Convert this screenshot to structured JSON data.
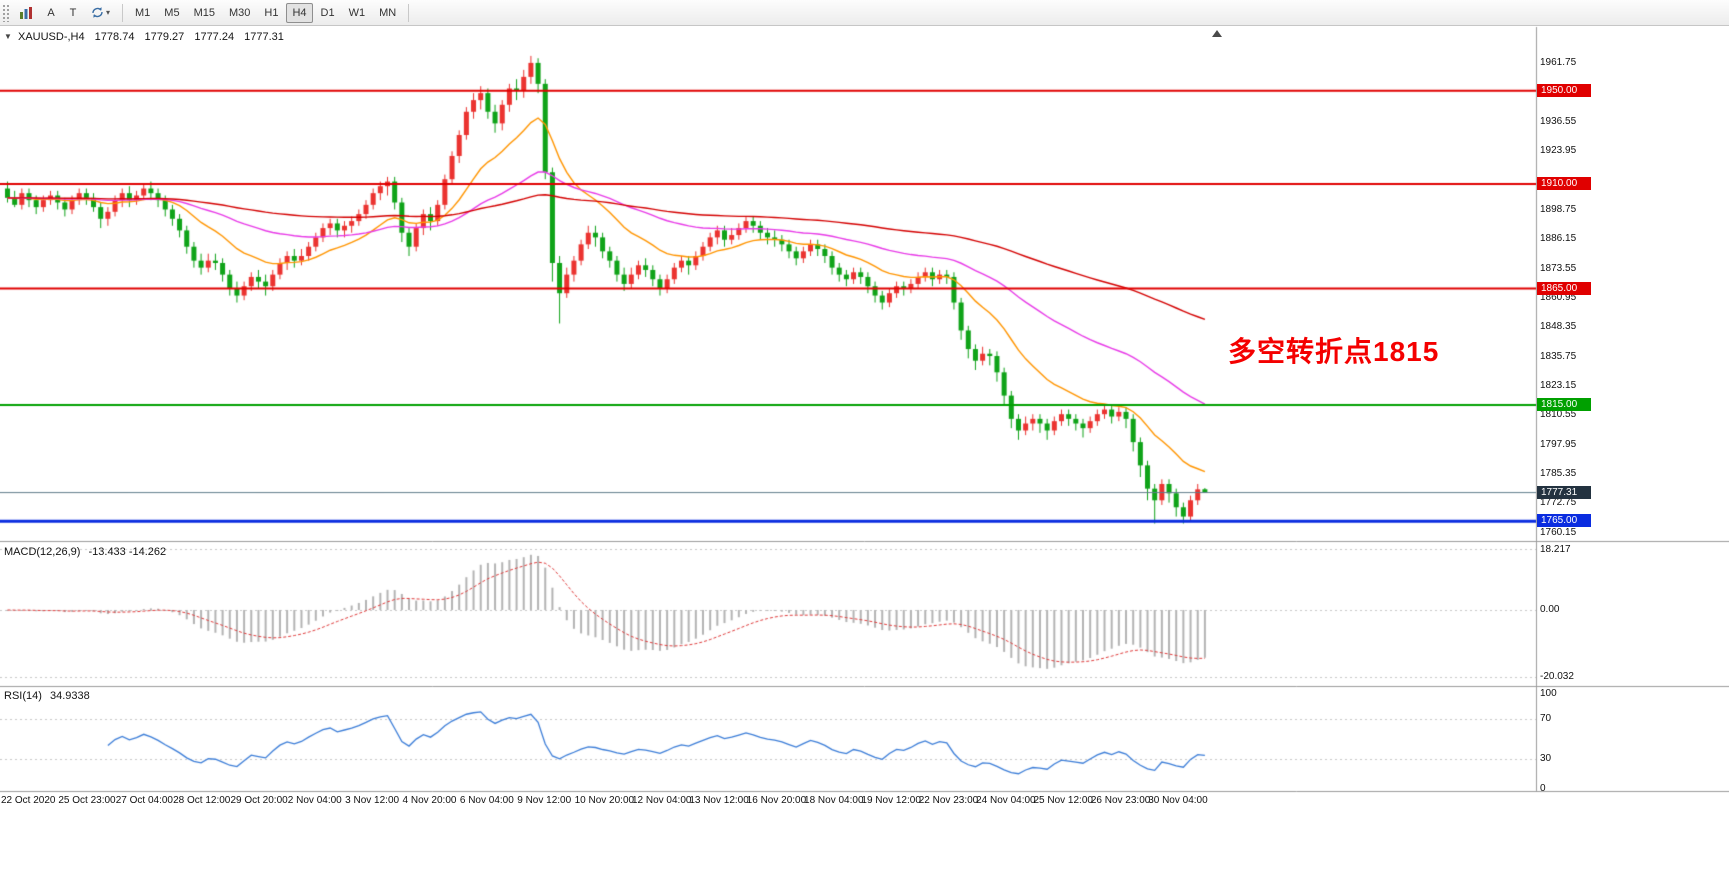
{
  "toolbar": {
    "cursor_label": "A",
    "text_label": "T",
    "timeframes": [
      "M1",
      "M5",
      "M15",
      "M30",
      "H1",
      "H4",
      "D1",
      "W1",
      "MN"
    ],
    "active_timeframe": "H4"
  },
  "header": {
    "symbol_period": "XAUUSD-,H4",
    "open": "1778.74",
    "high": "1779.27",
    "low": "1777.24",
    "close": "1777.31"
  },
  "indicators": {
    "macd_label": "MACD(12,26,9)",
    "macd_values": "-13.433 -14.262",
    "rsi_label": "RSI(14)",
    "rsi_value": "34.9338"
  },
  "chart_data": {
    "type": "candlestick",
    "symbol": "XAUUSD-",
    "timeframe": "H4",
    "up_color": "#eb3330",
    "down_color": "#0fa318",
    "y_axis": {
      "min": 1756.5,
      "max": 1977,
      "tick_values": [
        1961.75,
        1936.55,
        1923.95,
        1898.75,
        1886.15,
        1873.55,
        1860.95,
        1848.35,
        1835.75,
        1823.15,
        1810.55,
        1797.95,
        1785.35,
        1772.75,
        1760.15
      ]
    },
    "x_axis_labels": [
      "22 Oct 2020",
      "25 Oct 23:00",
      "27 Oct 04:00",
      "28 Oct 12:00",
      "29 Oct 20:00",
      "2 Nov 04:00",
      "3 Nov 12:00",
      "4 Nov 20:00",
      "6 Nov 04:00",
      "9 Nov 12:00",
      "10 Nov 20:00",
      "12 Nov 04:00",
      "13 Nov 12:00",
      "16 Nov 20:00",
      "18 Nov 04:00",
      "19 Nov 12:00",
      "22 Nov 23:00",
      "24 Nov 04:00",
      "25 Nov 12:00",
      "26 Nov 23:00",
      "30 Nov 04:00"
    ],
    "horizontal_levels": [
      {
        "price": 1950.0,
        "label": "1950.00",
        "color": "#e00000",
        "width": 2
      },
      {
        "price": 1910.0,
        "label": "1910.00",
        "color": "#e00000",
        "width": 2
      },
      {
        "price": 1865.0,
        "label": "1865.00",
        "color": "#e00000",
        "width": 2
      },
      {
        "price": 1815.0,
        "label": "1815.00",
        "color": "#00a000",
        "width": 2
      },
      {
        "price": 1765.0,
        "label": "1765.00",
        "color": "#0a2ce0",
        "width": 3
      }
    ],
    "current_price": {
      "value": 1777.31,
      "label": "1777.31",
      "line_color": "#607d8b",
      "badge_color": "#233240"
    },
    "moving_averages": [
      {
        "name": "ma-fast",
        "period": 16,
        "color": "#ff9500"
      },
      {
        "name": "ma-mid",
        "period": 48,
        "color": "#e83ae8"
      },
      {
        "name": "ma-slow",
        "period": 130,
        "color": "#d40000"
      }
    ],
    "macd": {
      "fast": 12,
      "slow": 26,
      "signal": 9,
      "axis_labels": [
        "18.217",
        "0.00",
        "-20.032"
      ],
      "axis_values": [
        18.217,
        0,
        -20.032
      ],
      "range": [
        -22.7,
        20
      ],
      "hist_color": "#b4b4b4",
      "signal_color": "#e03a3a"
    },
    "rsi": {
      "period": 14,
      "axis_labels": [
        "100",
        "70",
        "30",
        "0"
      ],
      "axis_values": [
        100,
        70,
        30,
        0
      ],
      "grid_levels": [
        70,
        30
      ],
      "range": [
        0,
        100
      ],
      "color": "#3b7dd8"
    },
    "annotation": {
      "text": "多空转折点1815",
      "color": "#f40000"
    },
    "candles": [
      [
        1908,
        1911,
        1902,
        1904
      ],
      [
        1904,
        1907,
        1900,
        1901
      ],
      [
        1901,
        1908,
        1899,
        1906
      ],
      [
        1906,
        1908,
        1900,
        1903
      ],
      [
        1903,
        1905,
        1897,
        1900
      ],
      [
        1900,
        1905,
        1898,
        1903
      ],
      [
        1903,
        1907,
        1901,
        1905
      ],
      [
        1905,
        1907,
        1899,
        1902
      ],
      [
        1902,
        1904,
        1896,
        1899
      ],
      [
        1899,
        1905,
        1897,
        1903
      ],
      [
        1903,
        1908,
        1901,
        1906
      ],
      [
        1906,
        1908,
        1901,
        1904
      ],
      [
        1904,
        1906,
        1898,
        1900
      ],
      [
        1900,
        1902,
        1891,
        1895
      ],
      [
        1895,
        1900,
        1892,
        1898
      ],
      [
        1898,
        1905,
        1896,
        1903
      ],
      [
        1903,
        1908,
        1900,
        1906
      ],
      [
        1906,
        1909,
        1900,
        1903
      ],
      [
        1903,
        1907,
        1901,
        1905
      ],
      [
        1905,
        1910,
        1903,
        1908
      ],
      [
        1908,
        1911,
        1903,
        1906
      ],
      [
        1906,
        1908,
        1900,
        1903
      ],
      [
        1903,
        1905,
        1896,
        1899
      ],
      [
        1899,
        1901,
        1892,
        1895
      ],
      [
        1895,
        1897,
        1887,
        1890
      ],
      [
        1890,
        1892,
        1880,
        1883
      ],
      [
        1883,
        1885,
        1874,
        1877
      ],
      [
        1877,
        1880,
        1871,
        1874
      ],
      [
        1874,
        1880,
        1872,
        1877
      ],
      [
        1877,
        1880,
        1873,
        1876
      ],
      [
        1876,
        1878,
        1868,
        1871
      ],
      [
        1871,
        1873,
        1862,
        1865
      ],
      [
        1865,
        1868,
        1859,
        1862
      ],
      [
        1862,
        1868,
        1860,
        1866
      ],
      [
        1866,
        1872,
        1864,
        1870
      ],
      [
        1870,
        1873,
        1865,
        1868
      ],
      [
        1868,
        1871,
        1862,
        1866
      ],
      [
        1866,
        1873,
        1864,
        1871
      ],
      [
        1871,
        1878,
        1869,
        1876
      ],
      [
        1876,
        1881,
        1873,
        1879
      ],
      [
        1879,
        1882,
        1874,
        1877
      ],
      [
        1877,
        1882,
        1875,
        1879
      ],
      [
        1879,
        1885,
        1877,
        1883
      ],
      [
        1883,
        1889,
        1881,
        1887
      ],
      [
        1887,
        1893,
        1885,
        1891
      ],
      [
        1891,
        1895,
        1888,
        1893
      ],
      [
        1893,
        1895,
        1887,
        1890
      ],
      [
        1890,
        1894,
        1887,
        1892
      ],
      [
        1892,
        1896,
        1889,
        1894
      ],
      [
        1894,
        1899,
        1892,
        1897
      ],
      [
        1897,
        1903,
        1895,
        1901
      ],
      [
        1901,
        1908,
        1899,
        1906
      ],
      [
        1906,
        1911,
        1903,
        1909
      ],
      [
        1909,
        1913,
        1905,
        1911
      ],
      [
        1911,
        1913,
        1899,
        1902
      ],
      [
        1902,
        1904,
        1885,
        1889
      ],
      [
        1889,
        1891,
        1879,
        1883
      ],
      [
        1883,
        1893,
        1881,
        1891
      ],
      [
        1891,
        1899,
        1888,
        1897
      ],
      [
        1897,
        1900,
        1890,
        1894
      ],
      [
        1894,
        1903,
        1892,
        1901
      ],
      [
        1901,
        1914,
        1899,
        1912
      ],
      [
        1912,
        1924,
        1910,
        1922
      ],
      [
        1922,
        1933,
        1919,
        1931
      ],
      [
        1931,
        1943,
        1929,
        1941
      ],
      [
        1941,
        1949,
        1938,
        1946
      ],
      [
        1946,
        1952,
        1942,
        1949
      ],
      [
        1949,
        1951,
        1938,
        1941
      ],
      [
        1941,
        1944,
        1932,
        1936
      ],
      [
        1936,
        1946,
        1933,
        1944
      ],
      [
        1944,
        1953,
        1941,
        1951
      ],
      [
        1951,
        1955,
        1946,
        1950
      ],
      [
        1950,
        1959,
        1947,
        1956
      ],
      [
        1956,
        1965,
        1953,
        1962
      ],
      [
        1962,
        1964,
        1949,
        1953
      ],
      [
        1953,
        1955,
        1912,
        1915
      ],
      [
        1915,
        1917,
        1868,
        1876
      ],
      [
        1876,
        1879,
        1850,
        1863
      ],
      [
        1863,
        1874,
        1861,
        1871
      ],
      [
        1871,
        1879,
        1868,
        1877
      ],
      [
        1877,
        1886,
        1875,
        1884
      ],
      [
        1884,
        1892,
        1882,
        1889
      ],
      [
        1889,
        1892,
        1883,
        1887
      ],
      [
        1887,
        1889,
        1878,
        1881
      ],
      [
        1881,
        1883,
        1874,
        1877
      ],
      [
        1877,
        1879,
        1868,
        1871
      ],
      [
        1871,
        1874,
        1864,
        1867
      ],
      [
        1867,
        1874,
        1865,
        1871
      ],
      [
        1871,
        1877,
        1869,
        1875
      ],
      [
        1875,
        1878,
        1870,
        1873
      ],
      [
        1873,
        1875,
        1866,
        1869
      ],
      [
        1869,
        1871,
        1862,
        1865
      ],
      [
        1865,
        1871,
        1863,
        1869
      ],
      [
        1869,
        1876,
        1867,
        1874
      ],
      [
        1874,
        1879,
        1872,
        1877
      ],
      [
        1877,
        1879,
        1871,
        1875
      ],
      [
        1875,
        1881,
        1873,
        1879
      ],
      [
        1879,
        1885,
        1877,
        1883
      ],
      [
        1883,
        1889,
        1881,
        1887
      ],
      [
        1887,
        1892,
        1884,
        1890
      ],
      [
        1890,
        1892,
        1883,
        1886
      ],
      [
        1886,
        1891,
        1884,
        1888
      ],
      [
        1888,
        1893,
        1886,
        1891
      ],
      [
        1891,
        1896,
        1889,
        1894
      ],
      [
        1894,
        1896,
        1889,
        1892
      ],
      [
        1892,
        1894,
        1886,
        1889
      ],
      [
        1889,
        1891,
        1884,
        1887
      ],
      [
        1887,
        1890,
        1883,
        1886
      ],
      [
        1886,
        1888,
        1881,
        1884
      ],
      [
        1884,
        1886,
        1878,
        1881
      ],
      [
        1881,
        1883,
        1875,
        1878
      ],
      [
        1878,
        1883,
        1876,
        1881
      ],
      [
        1881,
        1886,
        1879,
        1884
      ],
      [
        1884,
        1886,
        1879,
        1882
      ],
      [
        1882,
        1884,
        1876,
        1879
      ],
      [
        1879,
        1881,
        1871,
        1874
      ],
      [
        1874,
        1876,
        1868,
        1871
      ],
      [
        1871,
        1873,
        1866,
        1869
      ],
      [
        1869,
        1874,
        1867,
        1872
      ],
      [
        1872,
        1874,
        1867,
        1870
      ],
      [
        1870,
        1872,
        1863,
        1866
      ],
      [
        1866,
        1868,
        1859,
        1862
      ],
      [
        1862,
        1864,
        1856,
        1859
      ],
      [
        1859,
        1865,
        1857,
        1863
      ],
      [
        1863,
        1868,
        1861,
        1866
      ],
      [
        1866,
        1868,
        1862,
        1865
      ],
      [
        1865,
        1869,
        1863,
        1867
      ],
      [
        1867,
        1872,
        1865,
        1870
      ],
      [
        1870,
        1874,
        1868,
        1872
      ],
      [
        1872,
        1874,
        1866,
        1869
      ],
      [
        1869,
        1873,
        1867,
        1871
      ],
      [
        1871,
        1873,
        1867,
        1870
      ],
      [
        1870,
        1872,
        1856,
        1859
      ],
      [
        1859,
        1861,
        1843,
        1847
      ],
      [
        1847,
        1849,
        1835,
        1839
      ],
      [
        1839,
        1841,
        1830,
        1834
      ],
      [
        1834,
        1840,
        1832,
        1837
      ],
      [
        1837,
        1839,
        1832,
        1836
      ],
      [
        1836,
        1838,
        1825,
        1829
      ],
      [
        1829,
        1831,
        1815,
        1819
      ],
      [
        1819,
        1821,
        1805,
        1809
      ],
      [
        1809,
        1811,
        1800,
        1804
      ],
      [
        1804,
        1810,
        1802,
        1807
      ],
      [
        1807,
        1811,
        1804,
        1809
      ],
      [
        1809,
        1811,
        1803,
        1807
      ],
      [
        1807,
        1809,
        1800,
        1804
      ],
      [
        1804,
        1810,
        1802,
        1808
      ],
      [
        1808,
        1813,
        1806,
        1811
      ],
      [
        1811,
        1813,
        1806,
        1809
      ],
      [
        1809,
        1811,
        1804,
        1807
      ],
      [
        1807,
        1809,
        1801,
        1805
      ],
      [
        1805,
        1810,
        1803,
        1808
      ],
      [
        1808,
        1813,
        1806,
        1811
      ],
      [
        1811,
        1815,
        1809,
        1813
      ],
      [
        1813,
        1815,
        1807,
        1810
      ],
      [
        1810,
        1814,
        1808,
        1812
      ],
      [
        1812,
        1814,
        1805,
        1809
      ],
      [
        1809,
        1811,
        1795,
        1799
      ],
      [
        1799,
        1801,
        1784,
        1789
      ],
      [
        1789,
        1791,
        1774,
        1779
      ],
      [
        1779,
        1781,
        1764,
        1774
      ],
      [
        1774,
        1783,
        1772,
        1781
      ],
      [
        1781,
        1783,
        1773,
        1777
      ],
      [
        1777,
        1779,
        1767,
        1771
      ],
      [
        1771,
        1773,
        1764,
        1767
      ],
      [
        1767,
        1776,
        1765,
        1774
      ],
      [
        1774,
        1781,
        1772,
        1778.7
      ],
      [
        1778.74,
        1779.27,
        1777.24,
        1777.31
      ]
    ]
  }
}
